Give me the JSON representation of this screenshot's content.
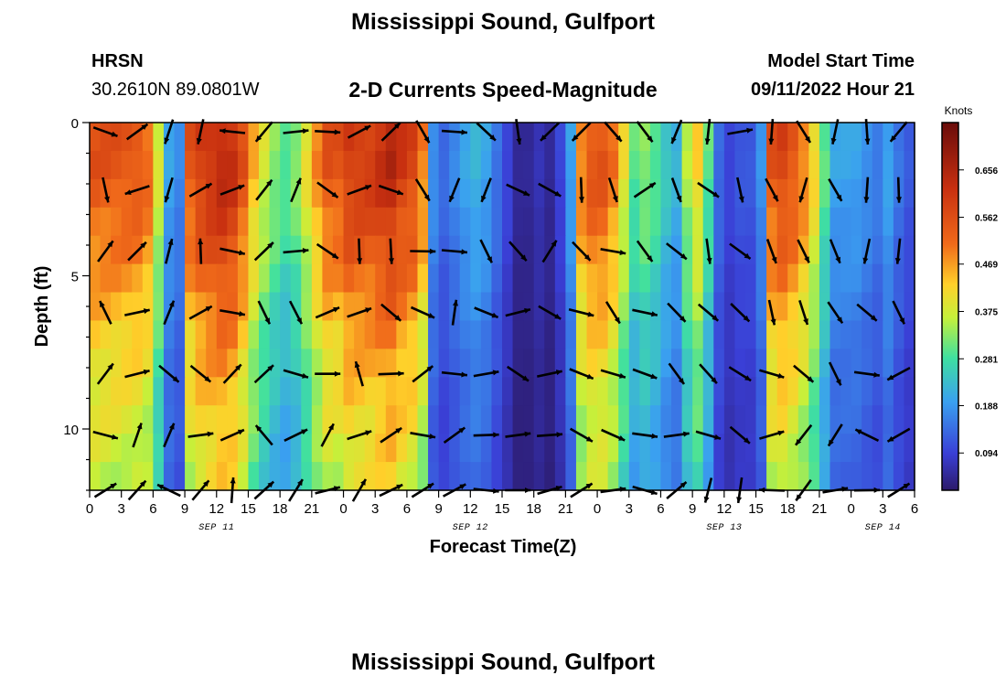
{
  "header": {
    "title": "Mississippi Sound, Gulfport",
    "station": "HRSN",
    "coords": "30.2610N  89.0801W",
    "subtitle": "2-D Currents Speed-Magnitude",
    "model_label": "Model Start Time",
    "model_time": "09/11/2022 Hour 21"
  },
  "footer": {
    "title": "Mississippi Sound, Gulfport"
  },
  "chart_data": {
    "type": "heatmap",
    "title": "2-D Currents Speed-Magnitude",
    "xlabel": "Forecast Time(Z)",
    "ylabel": "Depth (ft)",
    "x_tick_labels": [
      "0",
      "3",
      "6",
      "9",
      "12",
      "15",
      "18",
      "21",
      "0",
      "3",
      "6",
      "9",
      "12",
      "15",
      "18",
      "21",
      "0",
      "3",
      "6",
      "9",
      "12",
      "15",
      "18",
      "21",
      "0",
      "3",
      "6"
    ],
    "date_labels": [
      {
        "label": "SEP 11",
        "at_tick": 4
      },
      {
        "label": "SEP 12",
        "at_tick": 12
      },
      {
        "label": "SEP 13",
        "at_tick": 20
      },
      {
        "label": "SEP 14",
        "at_tick": 25
      }
    ],
    "y_ticks": [
      0,
      5,
      10
    ],
    "ylim": [
      0,
      12
    ],
    "x_range_hours": [
      0,
      78
    ],
    "colorbar": {
      "title": "Knots",
      "ticks": [
        "0.656",
        "0.562",
        "0.469",
        "0.375",
        "0.281",
        "0.188",
        "0.094"
      ],
      "range": [
        0.02,
        0.75
      ]
    },
    "speed_by_hour_knots": [
      0.55,
      0.55,
      0.55,
      0.55,
      0.55,
      0.52,
      0.38,
      0.2,
      0.17,
      0.55,
      0.6,
      0.62,
      0.64,
      0.62,
      0.55,
      0.45,
      0.38,
      0.33,
      0.3,
      0.33,
      0.4,
      0.48,
      0.55,
      0.55,
      0.6,
      0.6,
      0.6,
      0.62,
      0.64,
      0.6,
      0.58,
      0.5,
      0.18,
      0.14,
      0.17,
      0.2,
      0.22,
      0.2,
      0.15,
      0.1,
      0.05,
      0.05,
      0.07,
      0.05,
      0.1,
      0.2,
      0.5,
      0.55,
      0.55,
      0.5,
      0.4,
      0.3,
      0.33,
      0.3,
      0.25,
      0.22,
      0.35,
      0.42,
      0.3,
      0.14,
      0.1,
      0.12,
      0.12,
      0.18,
      0.55,
      0.58,
      0.55,
      0.5,
      0.42,
      0.3,
      0.2,
      0.2,
      0.2,
      0.18,
      0.16,
      0.2,
      0.15,
      0.12
    ],
    "depth_factors": [
      1.0,
      1.0,
      0.97,
      0.93,
      0.9,
      0.86,
      0.82,
      0.78,
      0.75,
      0.72,
      0.7,
      0.68,
      0.66
    ],
    "vector_directions_deg": [
      -20,
      40,
      -100,
      -90,
      -170,
      -110,
      30,
      25,
      60,
      80,
      -20,
      40,
      5,
      -30,
      -80,
      -75,
      15,
      15,
      -40,
      -20,
      90,
      -10,
      30,
      -10,
      10,
      -30,
      20,
      -10,
      0,
      0,
      -30,
      -20,
      0,
      20,
      0
    ]
  }
}
